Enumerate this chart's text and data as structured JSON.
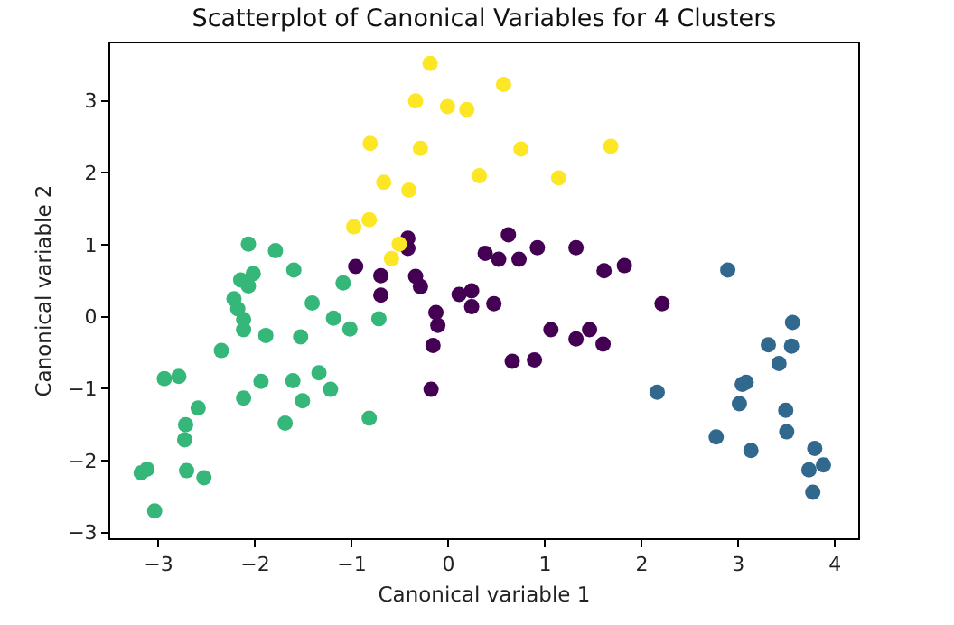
{
  "chart_data": {
    "type": "scatter",
    "title": "Scatterplot of Canonical Variables for 4 Clusters",
    "xlabel": "Canonical variable 1",
    "ylabel": "Canonical variable 2",
    "marker": "circle",
    "grid": false,
    "xlim": [
      -3.5,
      4.24
    ],
    "xticks": [
      -3,
      -2,
      -1,
      0,
      1,
      2,
      3,
      4
    ],
    "ylim": [
      -3.08,
      3.8
    ],
    "yticks": [
      -3,
      -2,
      -1,
      0,
      1,
      2,
      3
    ],
    "series": [
      {
        "color": "#440154",
        "x": [
          -0.96,
          -0.7,
          -0.7,
          -0.42,
          -0.42,
          -0.34,
          -0.29,
          -0.13,
          -0.11,
          -0.16,
          -0.18,
          0.11,
          0.24,
          0.24,
          0.47,
          0.38,
          0.52,
          0.62,
          0.73,
          0.92,
          1.32,
          1.61,
          1.06,
          1.32,
          1.46,
          1.6,
          0.66,
          0.89,
          1.82,
          2.21
        ],
        "values": [
          0.7,
          0.57,
          0.3,
          1.09,
          0.95,
          0.56,
          0.42,
          0.06,
          -0.12,
          -0.4,
          -1.01,
          0.31,
          0.36,
          0.14,
          0.18,
          0.88,
          0.8,
          1.14,
          0.8,
          0.96,
          0.96,
          0.64,
          -0.18,
          -0.31,
          -0.18,
          -0.38,
          -0.62,
          -0.6,
          0.71,
          0.18
        ]
      },
      {
        "color": "#31688e",
        "x": [
          2.89,
          3.56,
          3.31,
          3.55,
          3.42,
          3.04,
          3.08,
          3.01,
          3.49,
          3.5,
          2.16,
          2.77,
          3.13,
          3.79,
          3.73,
          3.88,
          3.77
        ],
        "values": [
          0.65,
          -0.08,
          -0.39,
          -0.41,
          -0.65,
          -0.94,
          -0.91,
          -1.21,
          -1.3,
          -1.6,
          -1.05,
          -1.67,
          -1.86,
          -1.83,
          -2.13,
          -2.06,
          -2.44
        ]
      },
      {
        "color": "#35b779",
        "x": [
          -2.07,
          -1.79,
          -1.6,
          -2.15,
          -2.02,
          -2.07,
          -2.22,
          -2.18,
          -2.12,
          -2.12,
          -1.89,
          -1.53,
          -1.41,
          -1.19,
          -1.09,
          -1.02,
          -0.72,
          -2.35,
          -2.94,
          -2.79,
          -1.94,
          -1.61,
          -1.34,
          -1.22,
          -2.12,
          -1.51,
          -2.59,
          -2.72,
          -2.73,
          -1.69,
          -0.82,
          -3.18,
          -3.12,
          -2.71,
          -2.53,
          -3.04
        ],
        "values": [
          1.01,
          0.92,
          0.65,
          0.51,
          0.6,
          0.43,
          0.25,
          0.11,
          -0.04,
          -0.18,
          -0.26,
          -0.28,
          0.19,
          -0.02,
          0.47,
          -0.17,
          -0.03,
          -0.47,
          -0.86,
          -0.83,
          -0.9,
          -0.89,
          -0.78,
          -1.01,
          -1.13,
          -1.17,
          -1.27,
          -1.5,
          -1.71,
          -1.48,
          -1.41,
          -2.17,
          -2.12,
          -2.14,
          -2.24,
          -2.7
        ]
      },
      {
        "color": "#fde725",
        "x": [
          -0.19,
          -0.34,
          -0.01,
          0.19,
          0.57,
          -0.81,
          -0.29,
          0.75,
          1.68,
          -0.41,
          0.32,
          1.14,
          -0.98,
          -0.82,
          -0.67,
          -0.51,
          -0.59
        ],
        "values": [
          3.52,
          3.0,
          2.92,
          2.88,
          3.23,
          2.41,
          2.34,
          2.33,
          2.37,
          1.76,
          1.96,
          1.93,
          1.25,
          1.35,
          1.87,
          1.01,
          0.81
        ]
      }
    ]
  }
}
